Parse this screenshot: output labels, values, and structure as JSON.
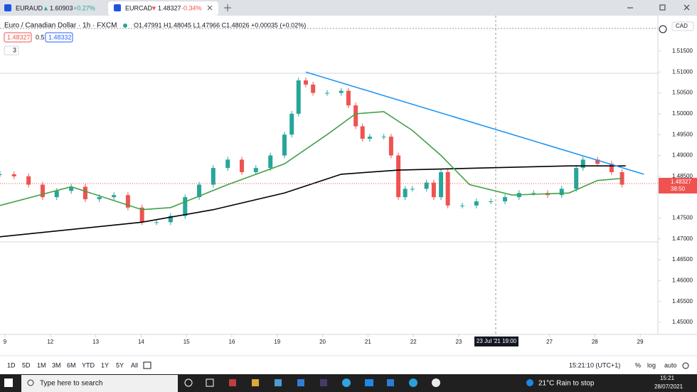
{
  "browser": {
    "tabs": [
      {
        "symbol": "EURAUD",
        "arrow": "▲",
        "price": "1.60903",
        "change": "+0.27%"
      },
      {
        "symbol": "EURCAD",
        "arrow": "▼",
        "price": "1.48327",
        "change": "-0.34%"
      }
    ]
  },
  "header": {
    "title": "Euro / Canadian Dollar · 1h · FXCM",
    "ohlc": "O1.47991 H1.48045 L1.47966 C1.48026 +0.00035 (+0.02%)",
    "bid": "1.48327",
    "spread": "0.5",
    "ask": "1.48332",
    "indicators": "3",
    "currency": "CAD"
  },
  "chart_data": {
    "type": "candlestick",
    "xlim": [
      -0.11,
      14.39
    ],
    "ylim": [
      1.4471,
      1.5196
    ],
    "xticks": [
      {
        "value": 0,
        "label": "9"
      },
      {
        "value": 1,
        "label": "12"
      },
      {
        "value": 2,
        "label": "13"
      },
      {
        "value": 3,
        "label": "14"
      },
      {
        "value": 4,
        "label": "15"
      },
      {
        "value": 5,
        "label": "16"
      },
      {
        "value": 6,
        "label": "19"
      },
      {
        "value": 7,
        "label": "20"
      },
      {
        "value": 8,
        "label": "21"
      },
      {
        "value": 9,
        "label": "22"
      },
      {
        "value": 10,
        "label": "23"
      },
      {
        "value": 12,
        "label": "27"
      },
      {
        "value": 13,
        "label": "28"
      },
      {
        "value": 14,
        "label": "29"
      }
    ],
    "yticks": [
      {
        "value": 1.515,
        "label": "1.51500"
      },
      {
        "value": 1.51,
        "label": "1.51000"
      },
      {
        "value": 1.505,
        "label": "1.50500"
      },
      {
        "value": 1.5,
        "label": "1.50000"
      },
      {
        "value": 1.495,
        "label": "1.49500"
      },
      {
        "value": 1.49,
        "label": "1.49000"
      },
      {
        "value": 1.485,
        "label": "1.48500"
      },
      {
        "value": 1.475,
        "label": "1.47500"
      },
      {
        "value": 1.47,
        "label": "1.47000"
      },
      {
        "value": 1.465,
        "label": "1.46500"
      },
      {
        "value": 1.46,
        "label": "1.46000"
      },
      {
        "value": 1.455,
        "label": "1.45500"
      },
      {
        "value": 1.45,
        "label": "1.45000"
      }
    ],
    "crosshair_label": "23 Jul '21  19:00",
    "last_price": 1.48327,
    "countdown": "38:50",
    "up_color": "#26a69a",
    "down_color": "#ef5350",
    "series": [
      {
        "color": "#26a69a",
        "x": [
          -0.11,
          0.2,
          0.52,
          0.83,
          1.14,
          1.46,
          1.77,
          2.08,
          2.4,
          2.71,
          3.02,
          3.34,
          3.65,
          3.97,
          4.28,
          4.59,
          4.91,
          5.22,
          5.53,
          5.85,
          6.16,
          6.32,
          6.47,
          6.63,
          6.79,
          7.1,
          7.41,
          7.57,
          7.73,
          7.88,
          8.04,
          8.35,
          8.51,
          8.67,
          8.82,
          8.98,
          9.29,
          9.45,
          9.61,
          9.76,
          10.08,
          10.39,
          10.71,
          11.02,
          11.33,
          11.65,
          11.96,
          12.27,
          12.59,
          12.74,
          13.06,
          13.37,
          13.6
        ],
        "values": [
          1.4855,
          1.485,
          1.483,
          1.48,
          1.4815,
          1.4825,
          1.4795,
          1.48,
          1.4805,
          1.4775,
          1.474,
          1.474,
          1.4755,
          1.48,
          1.483,
          1.487,
          1.489,
          1.486,
          1.487,
          1.49,
          1.495,
          1.5,
          1.508,
          1.507,
          1.505,
          1.505,
          1.5055,
          1.502,
          1.497,
          1.494,
          1.4945,
          1.4945,
          1.49,
          1.48,
          1.482,
          1.482,
          1.4835,
          1.48,
          1.486,
          1.478,
          1.478,
          1.479,
          1.479,
          1.48,
          1.481,
          1.481,
          1.4805,
          1.482,
          1.487,
          1.489,
          1.488,
          1.486,
          1.483
        ]
      },
      {
        "color": "#000000",
        "x": [
          -0.11,
          3.02,
          4.59,
          6.16,
          7.41,
          8.67,
          10.55,
          12.43,
          13.68
        ],
        "values": [
          1.4705,
          1.474,
          1.477,
          1.481,
          1.4855,
          1.4865,
          1.487,
          1.4875,
          1.4875
        ]
      },
      {
        "color": "#43a047",
        "x": [
          -0.11,
          1.46,
          3.02,
          3.65,
          4.91,
          6.16,
          7.1,
          7.73,
          8.35,
          8.98,
          9.61,
          10.24,
          11.18,
          12.43,
          13.06,
          13.6
        ],
        "values": [
          1.478,
          1.4825,
          1.477,
          1.4775,
          1.483,
          1.488,
          1.495,
          1.5,
          1.5005,
          1.496,
          1.49,
          1.483,
          1.4805,
          1.481,
          1.484,
          1.4845
        ]
      },
      {
        "color": "#2196f3",
        "x": [
          6.63,
          14.08
        ],
        "values": [
          1.51,
          1.4855
        ]
      }
    ]
  },
  "toolbar": {
    "ranges": [
      "1D",
      "5D",
      "1M",
      "3M",
      "6M",
      "YTD",
      "1Y",
      "5Y",
      "All"
    ],
    "clock": "15:21:10 (UTC+1)",
    "percent": "%",
    "log": "log",
    "auto": "auto"
  },
  "taskbar": {
    "search": "Type here to search",
    "weather": "21°C  Rain to stop",
    "time": "15:21",
    "date": "28/07/2021"
  }
}
